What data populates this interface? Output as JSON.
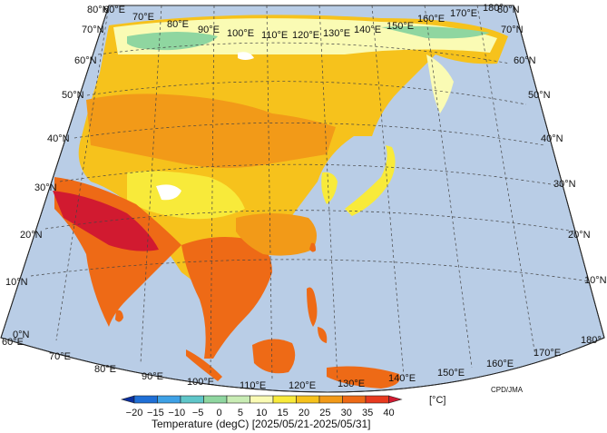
{
  "map": {
    "lat_labels": [
      "0°N",
      "10°N",
      "20°N",
      "30°N",
      "40°N",
      "50°N",
      "60°N",
      "70°N",
      "80°N"
    ],
    "lon_labels": [
      "60°E",
      "70°E",
      "80°E",
      "90°E",
      "100°E",
      "110°E",
      "120°E",
      "130°E",
      "140°E",
      "150°E",
      "160°E",
      "170°E",
      "180°"
    ],
    "ocean_color": "#b9cde6",
    "credit": "CPD/JMA"
  },
  "legend": {
    "title": "Temperature (degC) [2025/05/21-2025/05/31]",
    "unit": "[°C]",
    "ticks": [
      "−20",
      "−15",
      "−10",
      "−5",
      "0",
      "5",
      "10",
      "15",
      "20",
      "25",
      "30",
      "35",
      "40"
    ],
    "colors": [
      "#0a2f9e",
      "#1f6fd6",
      "#3ea1e6",
      "#5fc6c9",
      "#8fd6a0",
      "#c8ecb4",
      "#fafbb4",
      "#f8ea3a",
      "#f6c21c",
      "#f29a18",
      "#ee6a16",
      "#e83a1e",
      "#d11a30"
    ]
  }
}
